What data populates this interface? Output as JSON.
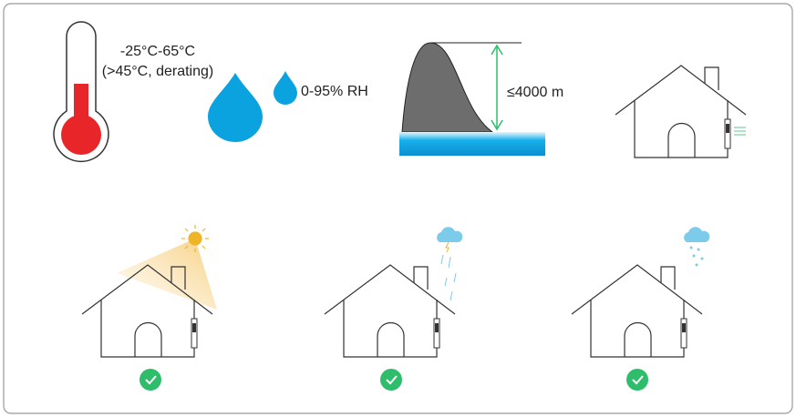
{
  "temperature": {
    "range": "-25°C-65°C",
    "note": "(>45°C, derating)"
  },
  "humidity": {
    "label": "0-95% RH"
  },
  "altitude": {
    "label": "≤4000 m"
  }
}
